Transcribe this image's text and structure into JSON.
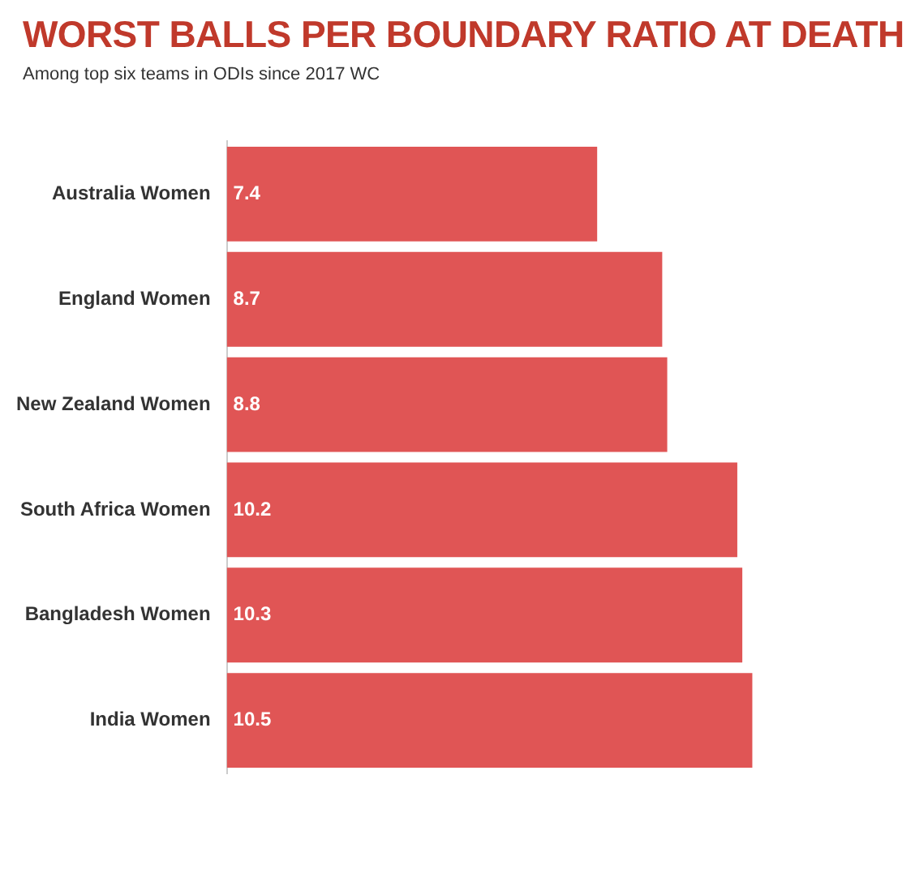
{
  "chart_data": {
    "type": "bar",
    "orientation": "horizontal",
    "title": "WORST BALLS PER BOUNDARY RATIO AT DEATH",
    "subtitle": "Among top six teams in ODIs since 2017 WC",
    "categories": [
      "Australia Women",
      "England Women",
      "New Zealand Women",
      "South Africa Women",
      "Bangladesh Women",
      "India Women"
    ],
    "values": [
      7.4,
      8.7,
      8.8,
      10.2,
      10.3,
      10.5
    ],
    "color": "#e05555",
    "data_labels": true,
    "legend": false,
    "tick_labels": "y"
  }
}
